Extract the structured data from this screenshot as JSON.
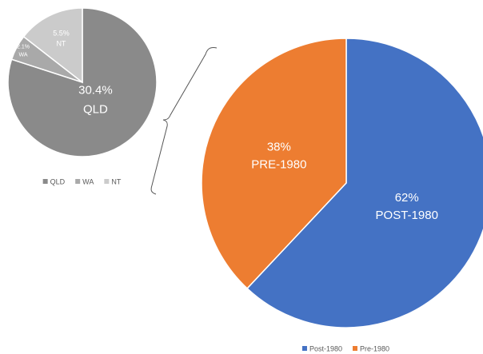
{
  "chart_data": [
    {
      "type": "pie",
      "categories": [
        "QLD",
        "WA",
        "NT"
      ],
      "values": [
        30.4,
        2.1,
        5.5
      ],
      "value_labels": [
        "30.4%",
        "2.1%",
        "5.5%"
      ],
      "colors": [
        "#8a8a8a",
        "#a9a9a9",
        "#cbcbcb"
      ],
      "legend": "bottom"
    },
    {
      "type": "pie",
      "categories": [
        "Post-1980",
        "Pre-1980"
      ],
      "values": [
        62,
        38
      ],
      "value_labels": [
        "62%",
        "38%"
      ],
      "label_names": [
        "POST-1980",
        "PRE-1980"
      ],
      "colors": [
        "#4472c4",
        "#ed7d31"
      ],
      "legend": "bottom"
    }
  ]
}
